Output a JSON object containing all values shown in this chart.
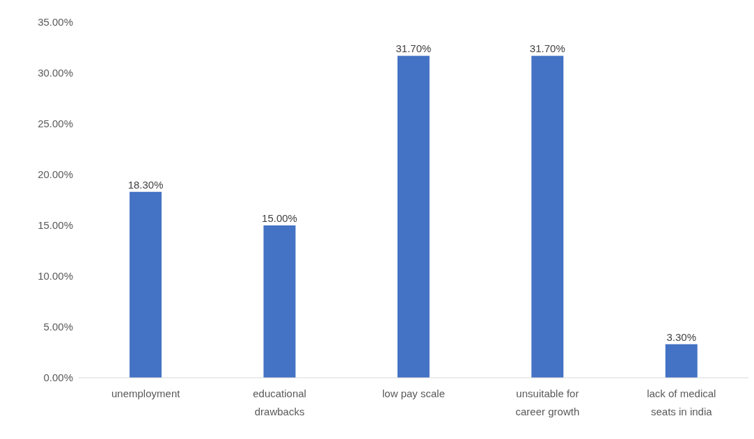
{
  "chart_data": {
    "type": "bar",
    "categories": [
      "unemployment",
      "educational drawbacks",
      "low pay scale",
      "unsuitable for career growth",
      "lack of medical seats in india"
    ],
    "values": [
      18.3,
      15.0,
      31.7,
      31.7,
      3.3
    ],
    "value_labels": [
      "18.30%",
      "15.00%",
      "31.70%",
      "31.70%",
      "3.30%"
    ],
    "color": "#4472c4",
    "ylim": [
      0,
      35
    ],
    "yticks": [
      {
        "value": 0,
        "label": "0.00%"
      },
      {
        "value": 5,
        "label": "5.00%"
      },
      {
        "value": 10,
        "label": "10.00%"
      },
      {
        "value": 15,
        "label": "15.00%"
      },
      {
        "value": 20,
        "label": "20.00%"
      },
      {
        "value": 25,
        "label": "25.00%"
      },
      {
        "value": 30,
        "label": "30.00%"
      },
      {
        "value": 35,
        "label": "35.00%"
      }
    ],
    "grid": false,
    "legend": false
  }
}
